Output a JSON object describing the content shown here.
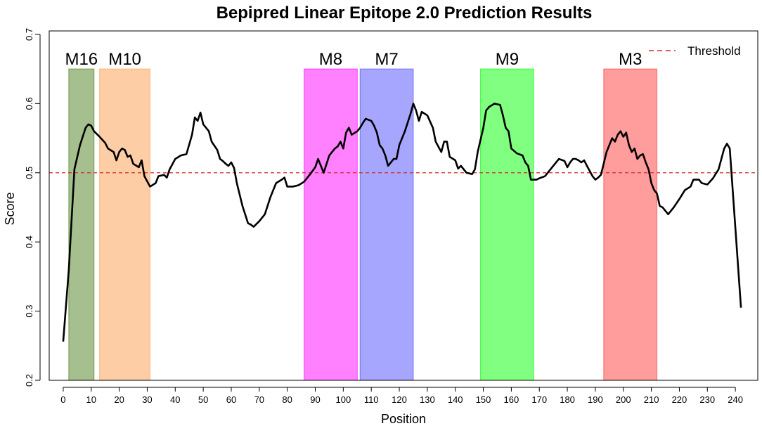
{
  "chart_data": {
    "type": "line",
    "title": "Bepipred Linear Epitope 2.0 Prediction Results",
    "xlabel": "Position",
    "ylabel": "Score",
    "xlim": [
      -5,
      248
    ],
    "ylim": [
      0.2,
      0.705
    ],
    "xticks": [
      0,
      10,
      20,
      30,
      40,
      50,
      60,
      70,
      80,
      90,
      100,
      110,
      120,
      130,
      140,
      150,
      160,
      170,
      180,
      190,
      200,
      210,
      220,
      230,
      240
    ],
    "yticks": [
      0.2,
      0.3,
      0.4,
      0.5,
      0.6,
      0.7
    ],
    "threshold": {
      "value": 0.5,
      "color": "#d62728",
      "label": "Threshold"
    },
    "legend": {
      "position": "top-right",
      "entries": [
        "Threshold"
      ]
    },
    "grid": false,
    "regions": [
      {
        "label": "M16",
        "start": 2,
        "end": 11,
        "color": "#5b8a33",
        "ymax": 0.65
      },
      {
        "label": "M10",
        "start": 13,
        "end": 31,
        "color": "#fba65d",
        "ymax": 0.65
      },
      {
        "label": "M8",
        "start": 86,
        "end": 105,
        "color": "#ff1aff",
        "ymax": 0.65
      },
      {
        "label": "M7",
        "start": 106,
        "end": 125,
        "color": "#5c5cff",
        "ymax": 0.65
      },
      {
        "label": "M9",
        "start": 149,
        "end": 168,
        "color": "#1aff1a",
        "ymax": 0.65
      },
      {
        "label": "M3",
        "start": 193,
        "end": 212,
        "color": "#ff4d4d",
        "ymax": 0.65
      }
    ],
    "series": [
      {
        "color": "#000000",
        "points": [
          [
            0,
            0.256
          ],
          [
            2,
            0.36
          ],
          [
            4,
            0.505
          ],
          [
            6,
            0.54
          ],
          [
            8,
            0.565
          ],
          [
            9,
            0.57
          ],
          [
            10,
            0.568
          ],
          [
            11,
            0.56
          ],
          [
            13,
            0.552
          ],
          [
            15,
            0.543
          ],
          [
            16,
            0.535
          ],
          [
            18,
            0.53
          ],
          [
            19,
            0.518
          ],
          [
            20,
            0.53
          ],
          [
            21,
            0.535
          ],
          [
            22,
            0.533
          ],
          [
            23,
            0.523
          ],
          [
            24,
            0.525
          ],
          [
            25,
            0.513
          ],
          [
            27,
            0.508
          ],
          [
            28,
            0.518
          ],
          [
            29,
            0.495
          ],
          [
            31,
            0.48
          ],
          [
            33,
            0.485
          ],
          [
            34,
            0.495
          ],
          [
            36,
            0.497
          ],
          [
            37,
            0.493
          ],
          [
            38,
            0.505
          ],
          [
            40,
            0.52
          ],
          [
            42,
            0.525
          ],
          [
            44,
            0.527
          ],
          [
            46,
            0.555
          ],
          [
            47,
            0.58
          ],
          [
            48,
            0.575
          ],
          [
            49,
            0.587
          ],
          [
            50,
            0.57
          ],
          [
            52,
            0.56
          ],
          [
            53,
            0.545
          ],
          [
            55,
            0.533
          ],
          [
            56,
            0.52
          ],
          [
            57,
            0.517
          ],
          [
            58,
            0.513
          ],
          [
            59,
            0.51
          ],
          [
            60,
            0.515
          ],
          [
            61,
            0.507
          ],
          [
            62,
            0.485
          ],
          [
            64,
            0.452
          ],
          [
            66,
            0.427
          ],
          [
            67,
            0.425
          ],
          [
            68,
            0.422
          ],
          [
            70,
            0.43
          ],
          [
            72,
            0.44
          ],
          [
            74,
            0.465
          ],
          [
            76,
            0.485
          ],
          [
            78,
            0.49
          ],
          [
            79,
            0.493
          ],
          [
            80,
            0.48
          ],
          [
            82,
            0.48
          ],
          [
            84,
            0.482
          ],
          [
            86,
            0.487
          ],
          [
            88,
            0.497
          ],
          [
            90,
            0.508
          ],
          [
            91,
            0.52
          ],
          [
            93,
            0.5
          ],
          [
            95,
            0.525
          ],
          [
            96,
            0.53
          ],
          [
            97,
            0.535
          ],
          [
            98,
            0.538
          ],
          [
            99,
            0.545
          ],
          [
            100,
            0.535
          ],
          [
            101,
            0.558
          ],
          [
            102,
            0.565
          ],
          [
            103,
            0.555
          ],
          [
            105,
            0.56
          ],
          [
            106,
            0.565
          ],
          [
            107,
            0.572
          ],
          [
            108,
            0.578
          ],
          [
            110,
            0.575
          ],
          [
            111,
            0.568
          ],
          [
            112,
            0.558
          ],
          [
            113,
            0.54
          ],
          [
            114,
            0.535
          ],
          [
            115,
            0.525
          ],
          [
            116,
            0.51
          ],
          [
            118,
            0.52
          ],
          [
            119,
            0.52
          ],
          [
            120,
            0.54
          ],
          [
            122,
            0.56
          ],
          [
            124,
            0.585
          ],
          [
            125,
            0.6
          ],
          [
            126,
            0.59
          ],
          [
            127,
            0.575
          ],
          [
            128,
            0.588
          ],
          [
            130,
            0.583
          ],
          [
            132,
            0.565
          ],
          [
            133,
            0.545
          ],
          [
            135,
            0.53
          ],
          [
            136,
            0.545
          ],
          [
            137,
            0.545
          ],
          [
            138,
            0.523
          ],
          [
            140,
            0.518
          ],
          [
            141,
            0.506
          ],
          [
            142,
            0.51
          ],
          [
            144,
            0.5
          ],
          [
            146,
            0.498
          ],
          [
            147,
            0.505
          ],
          [
            148,
            0.53
          ],
          [
            150,
            0.565
          ],
          [
            151,
            0.59
          ],
          [
            152,
            0.595
          ],
          [
            154,
            0.6
          ],
          [
            156,
            0.598
          ],
          [
            157,
            0.583
          ],
          [
            158,
            0.565
          ],
          [
            159,
            0.56
          ],
          [
            160,
            0.535
          ],
          [
            162,
            0.528
          ],
          [
            164,
            0.525
          ],
          [
            165,
            0.515
          ],
          [
            166,
            0.51
          ],
          [
            167,
            0.49
          ],
          [
            169,
            0.49
          ],
          [
            170,
            0.492
          ],
          [
            172,
            0.495
          ],
          [
            174,
            0.505
          ],
          [
            176,
            0.515
          ],
          [
            177,
            0.52
          ],
          [
            179,
            0.517
          ],
          [
            180,
            0.508
          ],
          [
            181,
            0.515
          ],
          [
            182,
            0.52
          ],
          [
            183,
            0.52
          ],
          [
            184,
            0.518
          ],
          [
            185,
            0.515
          ],
          [
            186,
            0.518
          ],
          [
            187,
            0.51
          ],
          [
            189,
            0.495
          ],
          [
            190,
            0.49
          ],
          [
            191,
            0.493
          ],
          [
            192,
            0.497
          ],
          [
            194,
            0.53
          ],
          [
            196,
            0.55
          ],
          [
            197,
            0.545
          ],
          [
            198,
            0.555
          ],
          [
            199,
            0.56
          ],
          [
            200,
            0.552
          ],
          [
            201,
            0.558
          ],
          [
            202,
            0.54
          ],
          [
            203,
            0.53
          ],
          [
            204,
            0.535
          ],
          [
            205,
            0.52
          ],
          [
            206,
            0.525
          ],
          [
            207,
            0.527
          ],
          [
            208,
            0.515
          ],
          [
            209,
            0.505
          ],
          [
            210,
            0.485
          ],
          [
            211,
            0.475
          ],
          [
            212,
            0.47
          ],
          [
            213,
            0.452
          ],
          [
            214,
            0.45
          ],
          [
            216,
            0.44
          ],
          [
            218,
            0.45
          ],
          [
            220,
            0.462
          ],
          [
            222,
            0.475
          ],
          [
            224,
            0.48
          ],
          [
            225,
            0.49
          ],
          [
            227,
            0.49
          ],
          [
            228,
            0.485
          ],
          [
            230,
            0.483
          ],
          [
            232,
            0.492
          ],
          [
            234,
            0.505
          ],
          [
            235,
            0.52
          ],
          [
            236,
            0.535
          ],
          [
            237,
            0.542
          ],
          [
            238,
            0.535
          ],
          [
            240,
            0.42
          ],
          [
            242,
            0.305
          ]
        ]
      }
    ]
  }
}
